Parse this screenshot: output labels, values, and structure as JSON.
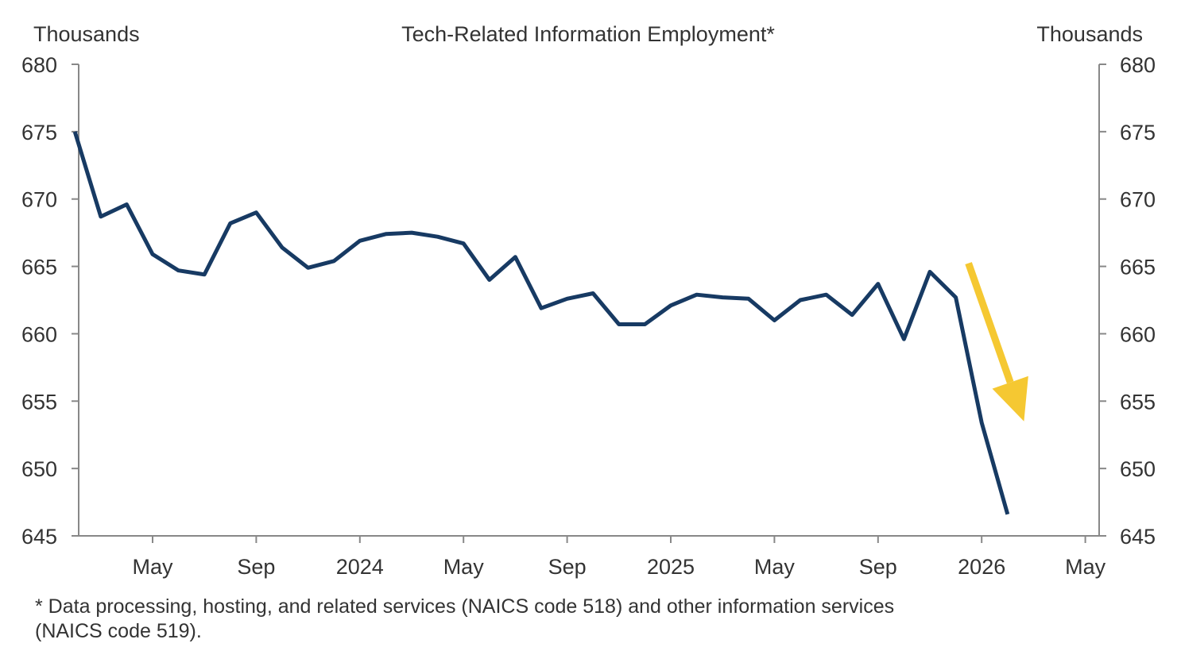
{
  "chart_data": {
    "type": "line",
    "title": "Tech-Related Information Employment*",
    "ylabel_left": "Thousands",
    "ylabel_right": "Thousands",
    "xlabel": "",
    "ylim": [
      645,
      680
    ],
    "yticks": [
      645,
      650,
      655,
      660,
      665,
      670,
      675,
      680
    ],
    "xlim": [
      "2023-02",
      "2026-05"
    ],
    "xticks": [
      {
        "date": "2023-05",
        "label": "May"
      },
      {
        "date": "2023-09",
        "label": "Sep"
      },
      {
        "date": "2024-01",
        "label": "2024"
      },
      {
        "date": "2024-05",
        "label": "May"
      },
      {
        "date": "2024-09",
        "label": "Sep"
      },
      {
        "date": "2025-01",
        "label": "2025"
      },
      {
        "date": "2025-05",
        "label": "May"
      },
      {
        "date": "2025-09",
        "label": "Sep"
      },
      {
        "date": "2026-01",
        "label": "2026"
      },
      {
        "date": "2026-05",
        "label": "May"
      }
    ],
    "grid": false,
    "line_color": "#173a63",
    "annotation_arrow_color": "#f5c832",
    "annotation": {
      "type": "arrow",
      "from": [
        "2025-12",
        665
      ],
      "to": [
        "2026-03",
        653.5
      ]
    },
    "x": [
      "2023-02",
      "2023-03",
      "2023-04",
      "2023-05",
      "2023-06",
      "2023-07",
      "2023-08",
      "2023-09",
      "2023-10",
      "2023-11",
      "2023-12",
      "2024-01",
      "2024-02",
      "2024-03",
      "2024-04",
      "2024-05",
      "2024-06",
      "2024-07",
      "2024-08",
      "2024-09",
      "2024-10",
      "2024-11",
      "2024-12",
      "2025-01",
      "2025-02",
      "2025-03",
      "2025-04",
      "2025-05",
      "2025-06",
      "2025-07",
      "2025-08",
      "2025-09",
      "2025-10",
      "2025-11",
      "2025-12",
      "2026-01",
      "2026-02"
    ],
    "values": [
      675.0,
      668.7,
      669.6,
      665.9,
      664.7,
      664.4,
      668.2,
      669.0,
      666.4,
      664.9,
      665.4,
      666.9,
      667.4,
      667.5,
      667.2,
      666.7,
      664.0,
      665.7,
      661.9,
      662.6,
      663.0,
      660.7,
      660.7,
      662.1,
      662.9,
      662.7,
      662.6,
      661.0,
      662.5,
      662.9,
      661.4,
      663.7,
      659.6,
      664.6,
      662.7,
      653.4,
      646.6
    ]
  },
  "footnote": {
    "line1": "* Data processing, hosting, and related services (NAICS code 518) and other information services",
    "line2": "(NAICS code 519)."
  }
}
